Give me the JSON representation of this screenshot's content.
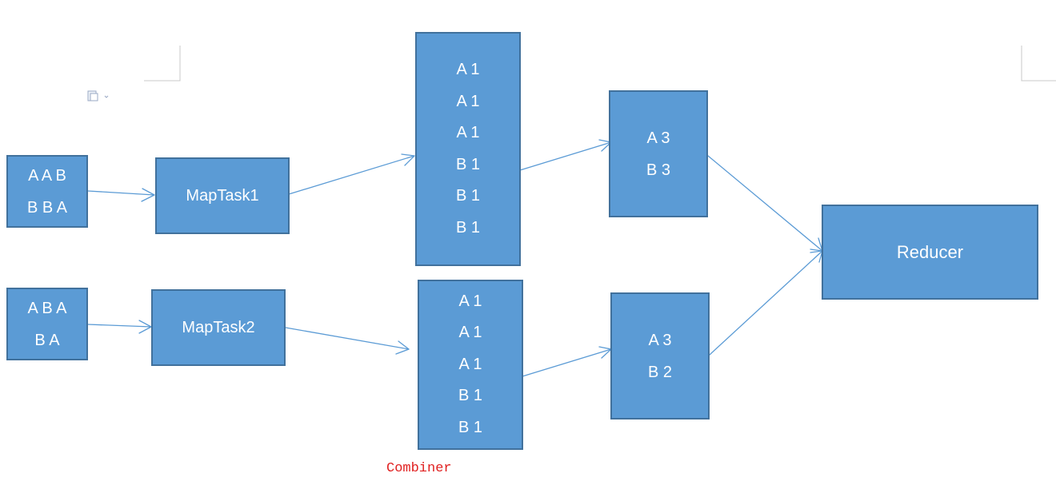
{
  "input1": {
    "lines": [
      "A A B",
      "B B A"
    ]
  },
  "input2": {
    "lines": [
      "A B A",
      "B A"
    ]
  },
  "maptask1": {
    "label": "MapTask1"
  },
  "maptask2": {
    "label": "MapTask2"
  },
  "map_output1": {
    "lines": [
      "A 1",
      "A 1",
      "A 1",
      "B 1",
      "B 1",
      "B 1"
    ]
  },
  "map_output2": {
    "lines": [
      "A 1",
      "A 1",
      "A 1",
      "B 1",
      "B 1"
    ]
  },
  "combined1": {
    "lines": [
      "A 3",
      "B 3"
    ]
  },
  "combined2": {
    "lines": [
      "A 3",
      "B 2"
    ]
  },
  "reducer": {
    "label": "Reducer"
  },
  "combiner_caption": "Combiner",
  "colors": {
    "box_fill": "#5b9bd5",
    "box_border": "#41719c",
    "arrow": "#5b9bd5",
    "caption": "#e02020"
  }
}
